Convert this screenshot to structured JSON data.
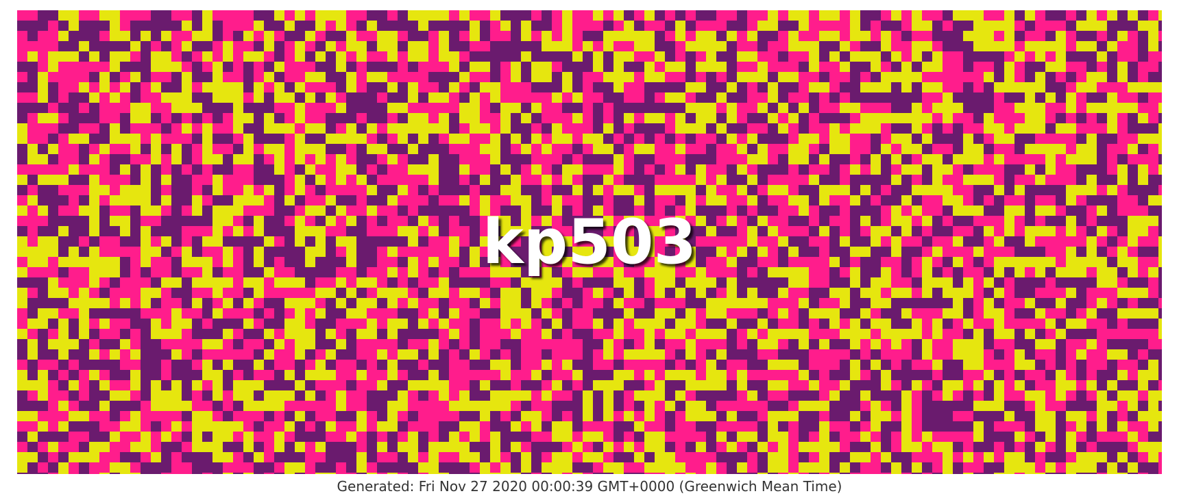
{
  "banner": {
    "title": "kp503",
    "palette": [
      "#e6e60f",
      "#ff1d8c",
      "#6a1b6e"
    ]
  },
  "footer": {
    "generated": "Generated: Fri Nov 27 2020 00:00:39 GMT+0000 (Greenwich Mean Time)"
  }
}
